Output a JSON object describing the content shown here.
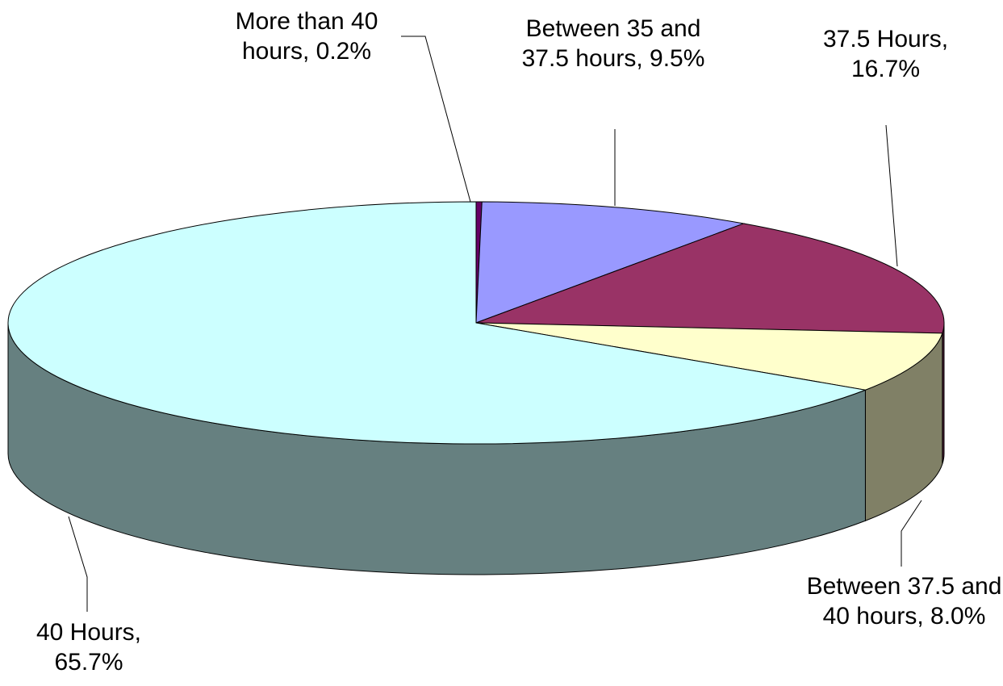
{
  "chart_data": {
    "type": "pie",
    "three_d": true,
    "values": [
      0.2,
      9.5,
      16.7,
      8.0,
      65.7
    ],
    "value_labels": [
      "More than 40 hours, 0.2%",
      "Between 35 and 37.5 hours, 9.5%",
      "37.5 Hours, 16.7%",
      "Between 37.5 and 40 hours, 8.0%",
      "40 Hours, 65.7%"
    ],
    "colors": [
      "#660066",
      "#9999ff",
      "#993366",
      "#ffffcc",
      "#ccffff"
    ],
    "side_colors": [
      "#330033",
      "#4d4d80",
      "#4d1a33",
      "#808066",
      "#668080"
    ]
  }
}
